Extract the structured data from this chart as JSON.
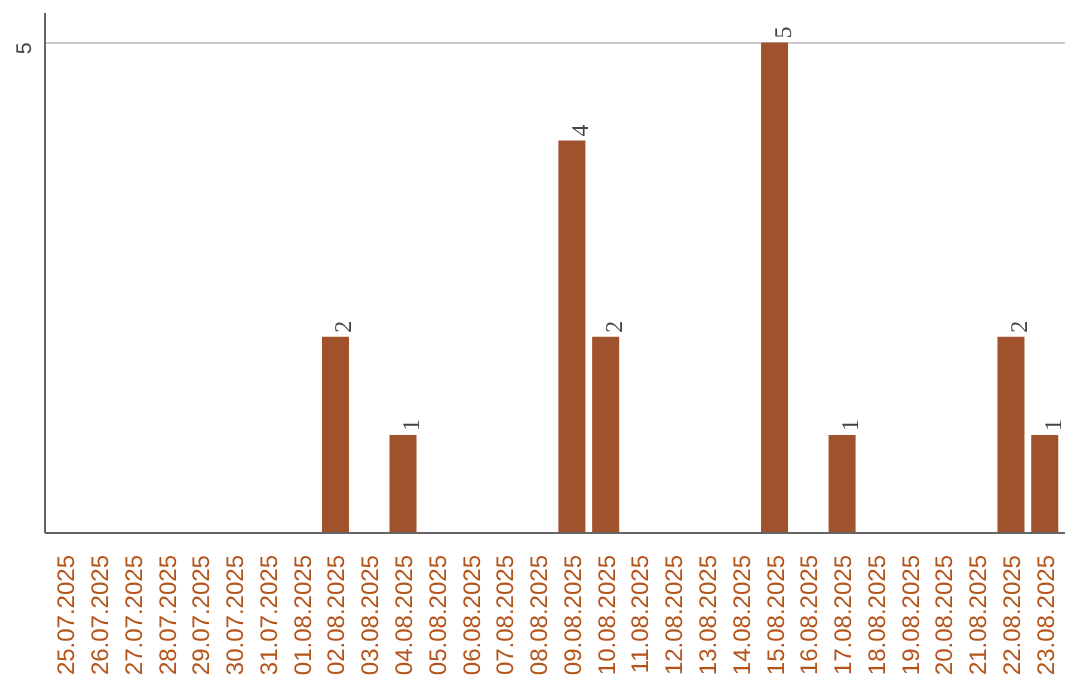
{
  "chart_data": {
    "type": "bar",
    "categories": [
      "25.07.2025",
      "26.07.2025",
      "27.07.2025",
      "28.07.2025",
      "29.07.2025",
      "30.07.2025",
      "31.07.2025",
      "01.08.2025",
      "02.08.2025",
      "03.08.2025",
      "04.08.2025",
      "05.08.2025",
      "06.08.2025",
      "07.08.2025",
      "08.08.2025",
      "09.08.2025",
      "10.08.2025",
      "11.08.2025",
      "12.08.2025",
      "13.08.2025",
      "14.08.2025",
      "15.08.2025",
      "16.08.2025",
      "17.08.2025",
      "18.08.2025",
      "19.08.2025",
      "20.08.2025",
      "21.08.2025",
      "22.08.2025",
      "23.08.2025"
    ],
    "values": [
      0,
      0,
      0,
      0,
      0,
      0,
      0,
      0,
      2,
      0,
      1,
      0,
      0,
      0,
      0,
      4,
      2,
      0,
      0,
      0,
      0,
      5,
      0,
      1,
      0,
      0,
      0,
      0,
      2,
      1
    ],
    "value_labels": [
      null,
      null,
      null,
      null,
      null,
      null,
      null,
      null,
      "2",
      null,
      "1",
      null,
      null,
      null,
      null,
      "4",
      "2",
      null,
      null,
      null,
      null,
      "5",
      null,
      "1",
      null,
      null,
      null,
      null,
      "2",
      "1"
    ],
    "color": "#a0522d",
    "ylim": [
      0,
      5.3
    ],
    "yticks": [
      5
    ],
    "grid": "y"
  }
}
